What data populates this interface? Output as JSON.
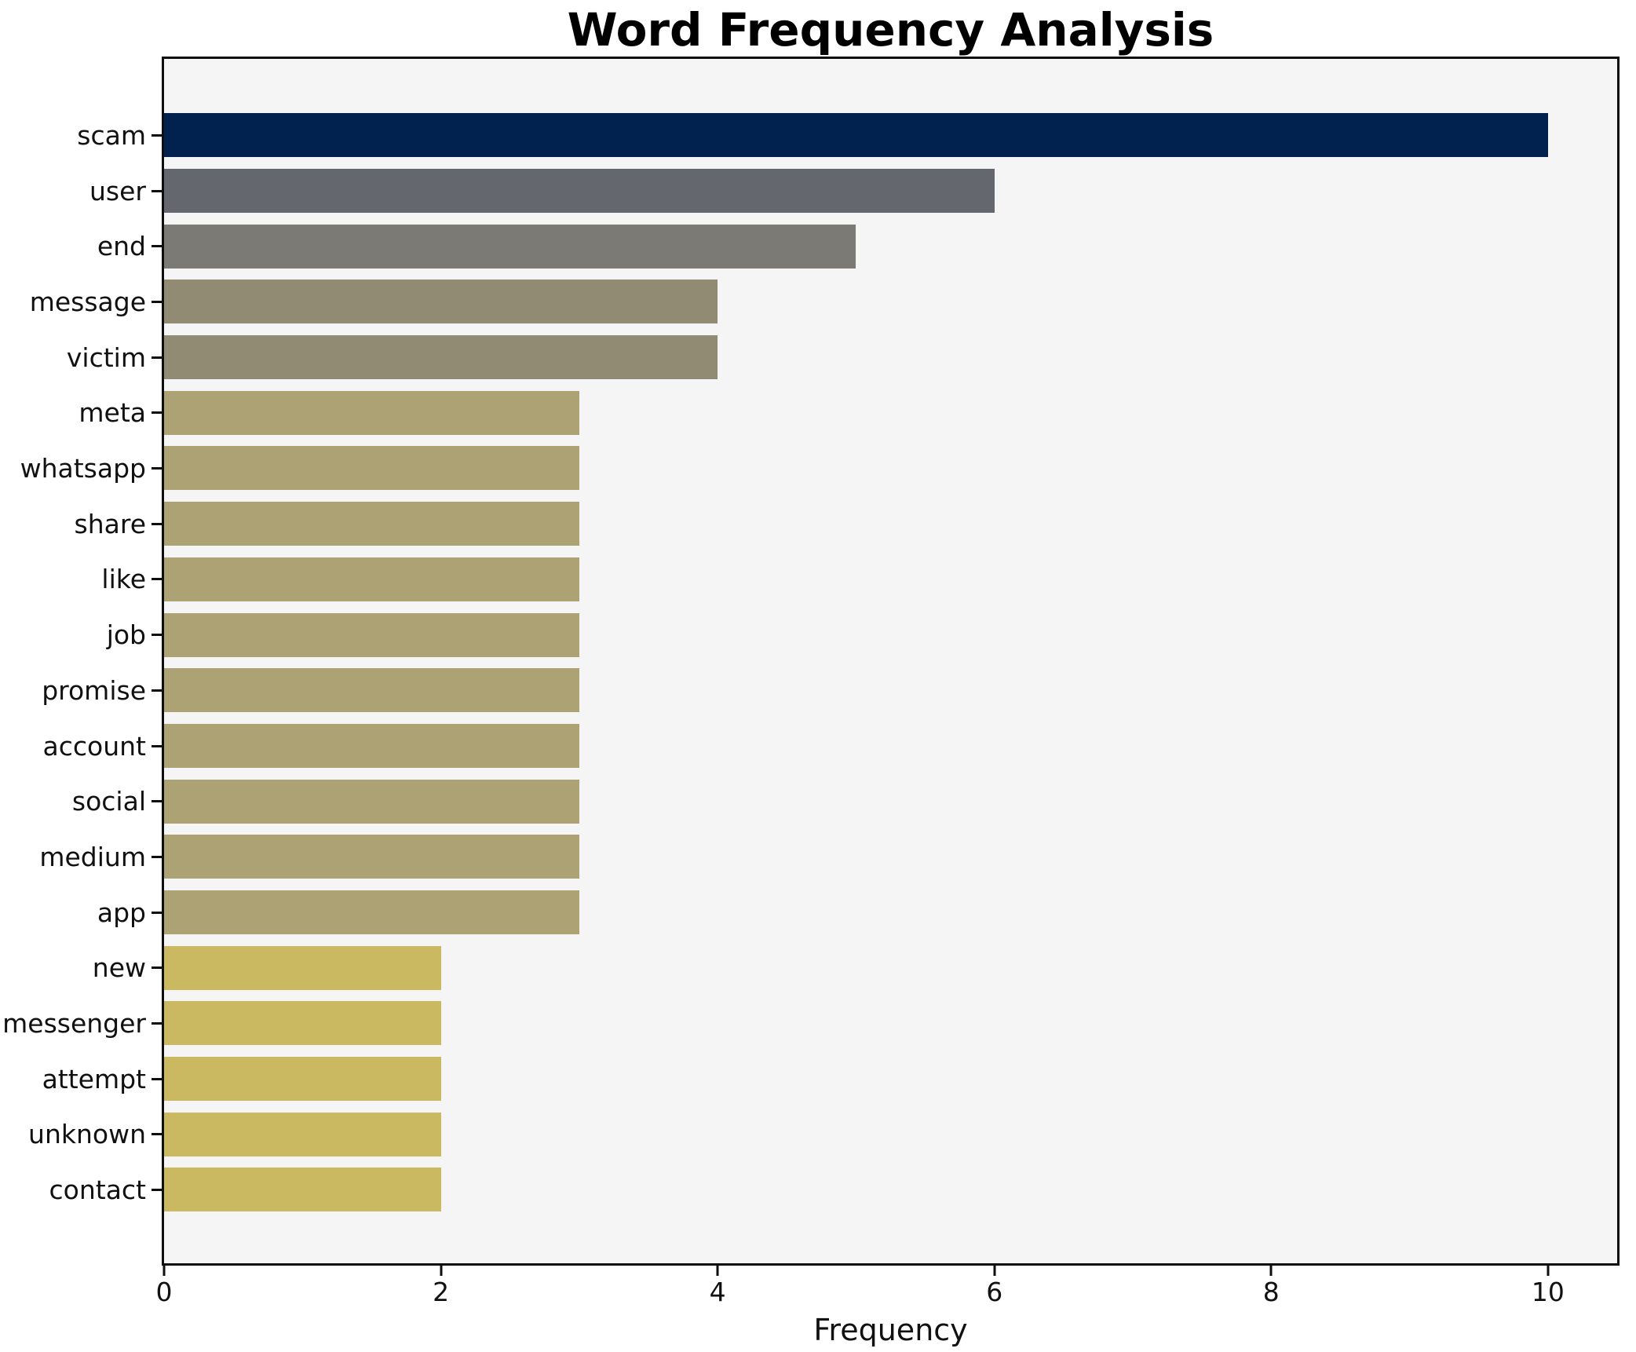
{
  "chart_data": {
    "type": "bar",
    "orientation": "horizontal",
    "title": "Word Frequency Analysis",
    "xlabel": "Frequency",
    "ylabel": "",
    "xlim": [
      0,
      10.5
    ],
    "xticks": [
      0,
      2,
      4,
      6,
      8,
      10
    ],
    "grid": false,
    "legend": "none",
    "categories": [
      "scam",
      "user",
      "end",
      "message",
      "victim",
      "meta",
      "whatsapp",
      "share",
      "like",
      "job",
      "promise",
      "account",
      "social",
      "medium",
      "app",
      "new",
      "messenger",
      "attempt",
      "unknown",
      "contact"
    ],
    "values": [
      10,
      6,
      5,
      4,
      4,
      3,
      3,
      3,
      3,
      3,
      3,
      3,
      3,
      3,
      3,
      2,
      2,
      2,
      2,
      2
    ],
    "bar_colors": [
      "#01214e",
      "#65676f",
      "#7b7a75",
      "#928b74",
      "#928b74",
      "#aca274",
      "#aca274",
      "#aca274",
      "#aca274",
      "#aca274",
      "#aca274",
      "#aca274",
      "#aca274",
      "#aca274",
      "#aca274",
      "#cab961",
      "#cab961",
      "#cab961",
      "#cab961",
      "#cab961"
    ],
    "plot_background": "#f5f5f6",
    "figure_background": "#ffffff",
    "spine_color": "#0e0e0e",
    "text_color": "#111111"
  }
}
